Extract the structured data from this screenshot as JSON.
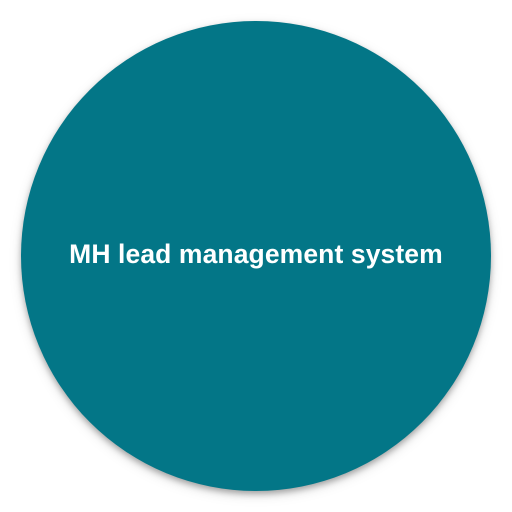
{
  "icon": {
    "label": "MH lead management system",
    "background_color": "#037687",
    "text_color": "#ffffff"
  }
}
